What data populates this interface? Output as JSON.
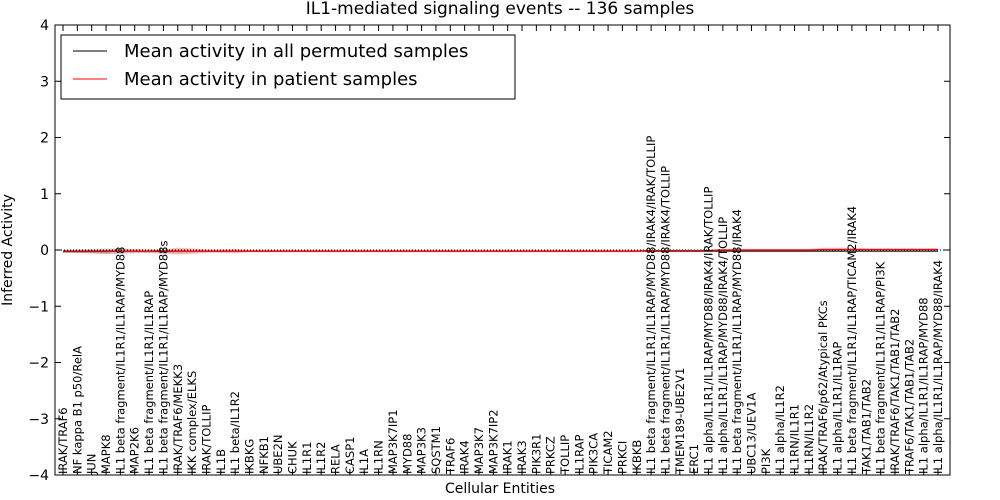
{
  "chart_data": {
    "type": "line",
    "title": "IL1-mediated signaling events -- 136 samples",
    "xlabel": "Cellular Entities",
    "ylabel": "Inferred Activity",
    "ylim": [
      -4,
      4
    ],
    "yticks": [
      -4,
      -3,
      -2,
      -1,
      0,
      1,
      2,
      3,
      4
    ],
    "grid": false,
    "legend_position": "top-left",
    "categories": [
      "IRAK/TRAF6",
      "NF kappa B1 p50/RelA",
      "JUN",
      "MAPK8",
      "IL1 beta fragment/IL1R1/IL1RAP/MYD88",
      "MAP2K6",
      "IL1 beta fragment/IL1R1/IL1RAP",
      "IL1 beta fragment/IL1R1/IL1RAP/MYD88s",
      "IRAK/TRAF6/MEKK3",
      "IKK complex/ELKS",
      "IRAK/TOLLIP",
      "IL1B",
      "IL1 beta/IL1R2",
      "IKBKG",
      "NFKB1",
      "UBE2N",
      "CHUK",
      "IL1R1",
      "IL1R2",
      "RELA",
      "CASP1",
      "IL1A",
      "IL1RN",
      "MAP3K7IP1",
      "MYD88",
      "MAP3K3",
      "SQSTM1",
      "TRAF6",
      "IRAK4",
      "MAP3K7",
      "MAP3K7IP2",
      "IRAK1",
      "IRAK3",
      "PIK3R1",
      "PRKCZ",
      "TOLLIP",
      "IL1RAP",
      "PIK3CA",
      "TICAM2",
      "PRKCI",
      "IKBKB",
      "IL1 beta fragment/IL1R1/IL1RAP/MYD88/IRAK4/IRAK/TOLLIP",
      "IL1 beta fragment/IL1R1/IL1RAP/MYD88/IRAK4/TOLLIP",
      "TMEM189-UBE2V1",
      "ERC1",
      "IL1 alpha/IL1R1/IL1RAP/MYD88/IRAK4/IRAK/TOLLIP",
      "IL1 alpha/IL1R1/IL1RAP/MYD88/IRAK4/TOLLIP",
      "IL1 beta fragment/IL1R1/IL1RAP/MYD88/IRAK4",
      "UBC13/UEV1A",
      "PI3K",
      "IL1 alpha/IL1R2",
      "IL1RN/IL1R1",
      "IL1RN/IL1R2",
      "IRAK/TRAF6/p62/Atypical PKCs",
      "IL1 alpha/IL1R1/IL1RAP",
      "IL1 beta fragment/IL1R1/IL1RAP/TICAM2/IRAK4",
      "TAK1/TAB1/TAB2",
      "IL1 beta fragment/IL1R1/IL1RAP/PI3K",
      "IRAK/TRAF6/TAK1/TAB1/TAB2",
      "TRAF6/TAK1/TAB1/TAB2",
      "IL1 alpha/IL1R1/IL1RAP/MYD88",
      "IL1 alpha/IL1R1/IL1RAP/MYD88/IRAK4"
    ],
    "series": [
      {
        "name": "Mean activity in all permuted samples",
        "color": "#000000",
        "values": [
          -0.02,
          -0.02,
          -0.02,
          -0.02,
          -0.02,
          -0.02,
          -0.02,
          -0.02,
          -0.02,
          -0.02,
          -0.02,
          -0.02,
          -0.02,
          -0.02,
          -0.02,
          -0.02,
          -0.02,
          -0.02,
          -0.02,
          -0.02,
          -0.02,
          -0.02,
          -0.02,
          -0.02,
          -0.02,
          -0.02,
          -0.02,
          -0.02,
          -0.02,
          -0.02,
          -0.02,
          -0.02,
          -0.02,
          -0.02,
          -0.02,
          -0.02,
          -0.02,
          -0.02,
          -0.02,
          -0.02,
          -0.02,
          -0.02,
          -0.02,
          -0.02,
          -0.02,
          -0.02,
          -0.02,
          -0.02,
          -0.02,
          -0.02,
          -0.02,
          -0.02,
          -0.02,
          -0.02,
          -0.02,
          -0.02,
          -0.02,
          -0.02,
          -0.02,
          -0.02,
          -0.02,
          -0.02
        ]
      },
      {
        "name": "Mean activity in patient samples",
        "color": "#ff0000",
        "values": [
          -0.03,
          -0.03,
          -0.03,
          -0.03,
          -0.02,
          -0.02,
          -0.02,
          -0.03,
          -0.02,
          -0.02,
          -0.02,
          -0.02,
          -0.02,
          -0.02,
          -0.02,
          -0.02,
          -0.02,
          -0.02,
          -0.02,
          -0.02,
          -0.02,
          -0.02,
          -0.02,
          -0.02,
          -0.02,
          -0.02,
          -0.02,
          -0.02,
          -0.02,
          -0.02,
          -0.02,
          -0.02,
          -0.02,
          -0.02,
          -0.02,
          -0.02,
          -0.02,
          -0.02,
          -0.02,
          -0.02,
          -0.02,
          -0.01,
          -0.01,
          -0.01,
          -0.01,
          -0.01,
          0.0,
          0.0,
          0.0,
          0.0,
          0.0,
          0.0,
          0.0,
          0.01,
          0.01,
          0.01,
          0.01,
          0.01,
          0.01,
          0.01,
          0.01,
          0.01
        ]
      }
    ],
    "band_grey": [
      0.02,
      0.03,
      0.04,
      0.05,
      0.05,
      0.04,
      0.03,
      0.03,
      0.04,
      0.03,
      0.02,
      0.02,
      0.02,
      0.02,
      0.02,
      0.02,
      0.02,
      0.02,
      0.02,
      0.02,
      0.02,
      0.02,
      0.02,
      0.02,
      0.02,
      0.02,
      0.02,
      0.02,
      0.02,
      0.02,
      0.02,
      0.02,
      0.02,
      0.02,
      0.02,
      0.02,
      0.02,
      0.02,
      0.02,
      0.02,
      0.02,
      0.02,
      0.02,
      0.02,
      0.02,
      0.02,
      0.02,
      0.02,
      0.02,
      0.02,
      0.02,
      0.02,
      0.02,
      0.02,
      0.02,
      0.02,
      0.02,
      0.02,
      0.02,
      0.02,
      0.02,
      0.02
    ],
    "band_red": [
      0.02,
      0.02,
      0.03,
      0.04,
      0.04,
      0.03,
      0.03,
      0.04,
      0.06,
      0.05,
      0.03,
      0.03,
      0.04,
      0.02,
      0.02,
      0.02,
      0.02,
      0.02,
      0.02,
      0.02,
      0.02,
      0.02,
      0.02,
      0.02,
      0.02,
      0.02,
      0.02,
      0.02,
      0.02,
      0.02,
      0.02,
      0.02,
      0.02,
      0.02,
      0.02,
      0.02,
      0.02,
      0.02,
      0.02,
      0.02,
      0.02,
      0.02,
      0.02,
      0.02,
      0.02,
      0.02,
      0.02,
      0.02,
      0.02,
      0.02,
      0.02,
      0.02,
      0.02,
      0.03,
      0.03,
      0.03,
      0.02,
      0.02,
      0.02,
      0.02,
      0.02,
      0.02
    ]
  }
}
